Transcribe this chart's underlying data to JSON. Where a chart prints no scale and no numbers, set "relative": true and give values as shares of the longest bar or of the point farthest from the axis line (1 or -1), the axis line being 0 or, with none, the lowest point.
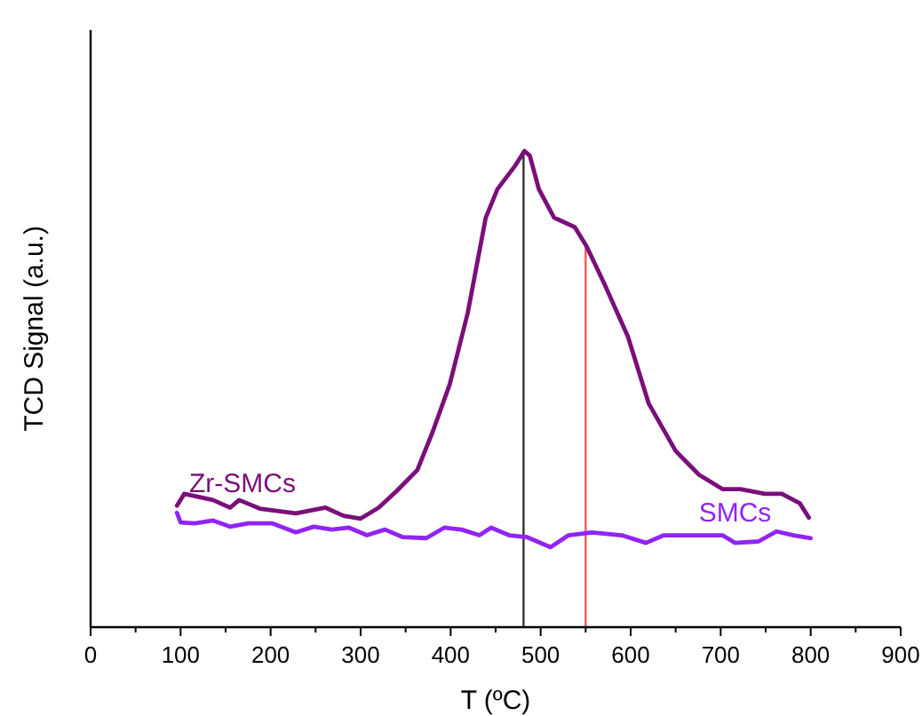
{
  "chart_data": {
    "type": "line",
    "relative": true,
    "xlabel": "T (ºC)",
    "ylabel": "TCD Signal (a.u.)",
    "xlim": [
      0,
      900
    ],
    "xticks": [
      0,
      {
        "value": 50,
        "label": null
      },
      100,
      {
        "value": 150,
        "label": null
      },
      200,
      {
        "value": 250,
        "label": null
      },
      300,
      {
        "value": 350,
        "label": null
      },
      400,
      {
        "value": 450,
        "label": null
      },
      500,
      {
        "value": 550,
        "label": null
      },
      600,
      {
        "value": 650,
        "label": null
      },
      700,
      {
        "value": 750,
        "label": null
      },
      800,
      {
        "value": 850,
        "label": null
      },
      900
    ],
    "grid": false,
    "marker": "none",
    "line_style": "solid",
    "ref_lines": [
      {
        "axis": "x",
        "value": 481,
        "color": "#333333"
      },
      {
        "axis": "x",
        "value": 550,
        "color": "#ff5555"
      }
    ],
    "series": [
      {
        "name": "Zr-SMCs",
        "color": "#7a0f7a",
        "x": [
          96,
          104,
          136,
          155,
          165,
          188,
          228,
          261,
          281,
          300,
          320,
          340,
          363,
          380,
          399,
          419,
          439,
          452,
          472,
          482,
          488,
          498,
          515,
          538,
          551,
          571,
          597,
          620,
          650,
          676,
          702,
          722,
          749,
          768,
          788,
          798
        ],
        "values": [
          0.255,
          0.28,
          0.267,
          0.251,
          0.267,
          0.249,
          0.239,
          0.251,
          0.234,
          0.228,
          0.251,
          0.286,
          0.33,
          0.41,
          0.51,
          0.66,
          0.86,
          0.92,
          0.97,
          1,
          0.99,
          0.92,
          0.86,
          0.84,
          0.8,
          0.72,
          0.61,
          0.47,
          0.37,
          0.32,
          0.29,
          0.29,
          0.28,
          0.28,
          0.26,
          0.23
        ]
      },
      {
        "name": "SMCs",
        "color": "#9124f5",
        "x": [
          96,
          100,
          116,
          136,
          155,
          175,
          202,
          228,
          248,
          268,
          287,
          307,
          327,
          347,
          373,
          393,
          412,
          432,
          445,
          465,
          485,
          511,
          531,
          557,
          590,
          617,
          637,
          669,
          702,
          716,
          742,
          762,
          781,
          800
        ],
        "values": [
          0.24,
          0.22,
          0.218,
          0.224,
          0.211,
          0.218,
          0.218,
          0.199,
          0.211,
          0.205,
          0.209,
          0.193,
          0.205,
          0.189,
          0.187,
          0.209,
          0.205,
          0.193,
          0.209,
          0.193,
          0.189,
          0.168,
          0.193,
          0.199,
          0.193,
          0.177,
          0.193,
          0.193,
          0.193,
          0.177,
          0.18,
          0.201,
          0.193,
          0.187
        ]
      }
    ]
  }
}
